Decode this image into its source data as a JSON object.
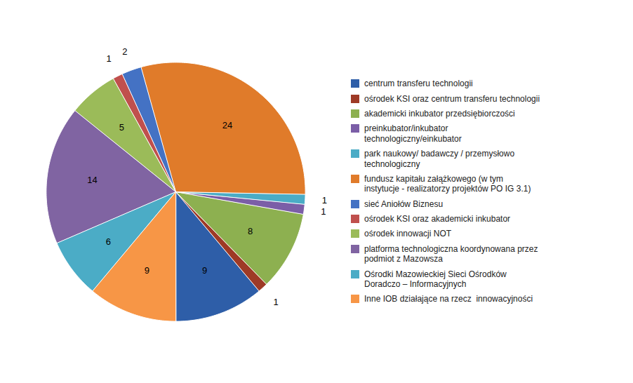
{
  "chart_data": {
    "type": "pie",
    "categories": [
      "centrum transferu technologii",
      "ośrodek KSI oraz centrum transferu technologii",
      "akademicki inkubator przedsiębiorczości",
      "preinkubator/inkubator\ntechnologiczny/einkubator",
      "park naukowy/ badawczy / przemysłowo\ntechnologiczny",
      "fundusz kapitału załążkowego (w tym\ninstytucje - realizatorzy projektów PO IG 3.1)",
      "sieć Aniołów Biznesu",
      "ośrodek KSI oraz akademicki inkubator",
      "ośrodek innowacji NOT",
      "platforma technologiczna koordynowana przez\npodmiot z Mazowsza",
      "Ośrodki Mazowieckiej Sieci Ośrodków\nDoradczo – Informacyjnych",
      "Inne IOB działające na rzecz  innowacyjności"
    ],
    "values": [
      9,
      1,
      8,
      1,
      1,
      24,
      2,
      1,
      5,
      14,
      6,
      9
    ],
    "colors": [
      "#2E5EA8",
      "#9E3A26",
      "#8DB050",
      "#7B5EA7",
      "#4BACC6",
      "#E07B2A",
      "#4472C4",
      "#C0504D",
      "#9BBB59",
      "#8064A2",
      "#4BACC6",
      "#F79646"
    ],
    "data_labels": true,
    "legend": "right"
  }
}
